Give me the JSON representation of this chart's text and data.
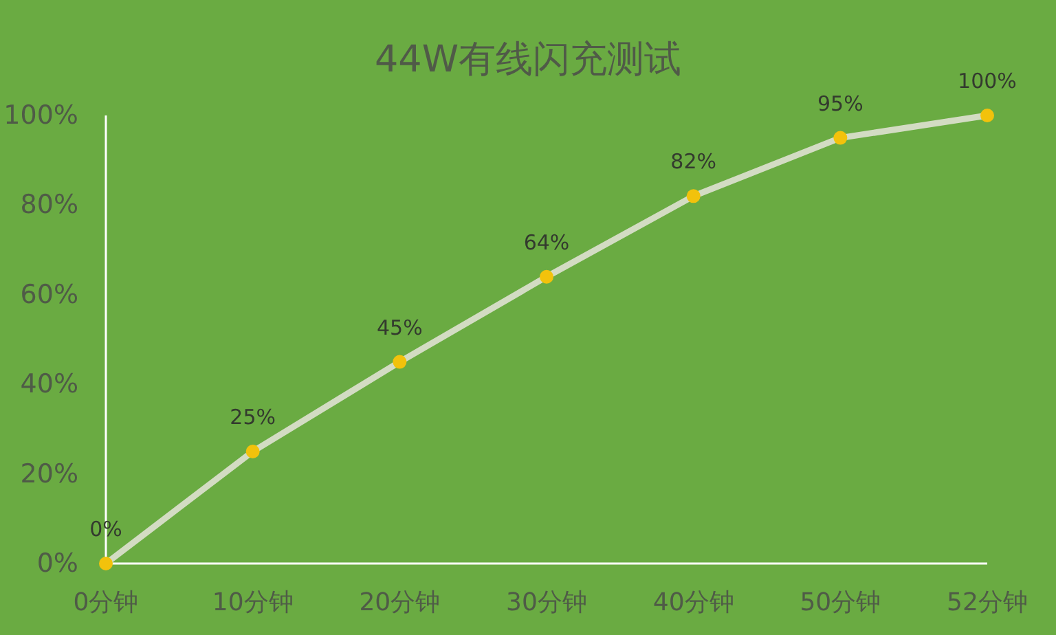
{
  "chart_data": {
    "type": "line",
    "title": "44W有线闪充测试",
    "categories": [
      "0分钟",
      "10分钟",
      "20分钟",
      "30分钟",
      "40分钟",
      "50分钟",
      "52分钟"
    ],
    "series": [
      {
        "color": "#d3dcc3",
        "colors": [
          "#f2c20c",
          "#f2c20c",
          "#f2c20c",
          "#f2c20c",
          "#f2c20c",
          "#f2c20c",
          "#f2c20c"
        ],
        "values": [
          0,
          25,
          45,
          64,
          82,
          95,
          100
        ],
        "value_labels": [
          "0%",
          "25%",
          "45%",
          "64%",
          "82%",
          "95%",
          "100%"
        ]
      }
    ],
    "ylim": [
      0,
      100
    ],
    "yticks": [
      {
        "value": 0,
        "label": "0%"
      },
      {
        "value": 20,
        "label": "20%"
      },
      {
        "value": 40,
        "label": "40%"
      },
      {
        "value": 60,
        "label": "60%"
      },
      {
        "value": 80,
        "label": "80%"
      },
      {
        "value": 100,
        "label": "100%"
      }
    ],
    "marker": "circle",
    "line_style": "solid",
    "grid": false
  }
}
